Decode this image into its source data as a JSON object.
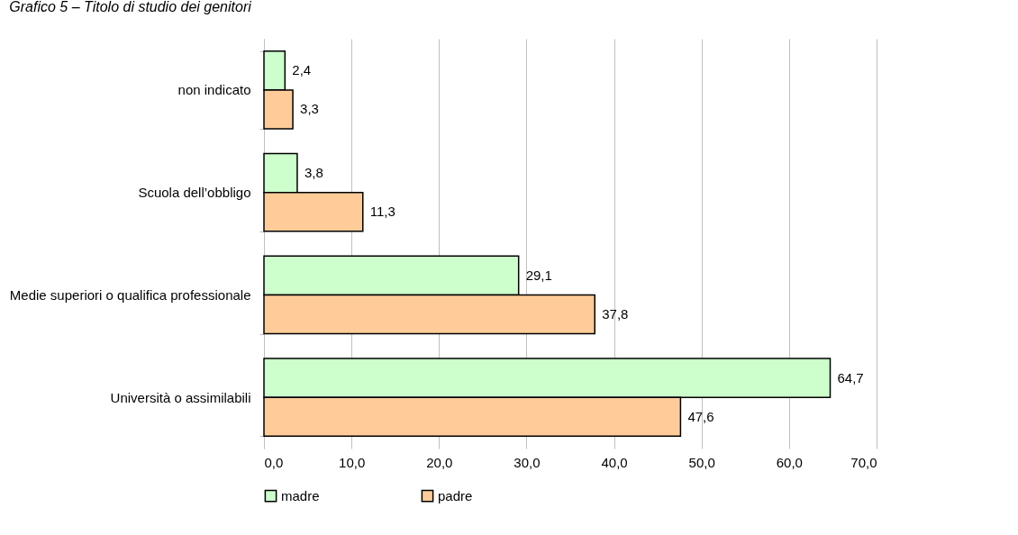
{
  "chart_data": {
    "type": "bar",
    "orientation": "horizontal",
    "title": "Grafico 5 – Titolo di studio dei genitori",
    "categories": [
      "non indicato",
      "Scuola dell’obbligo",
      "Medie superiori o qualifica professionale",
      "Università o assimilabili"
    ],
    "series": [
      {
        "name": "madre",
        "color": "#ccffcc",
        "values": [
          2.4,
          3.8,
          29.1,
          64.7
        ],
        "value_labels": [
          "2,4",
          "3,8",
          "29,1",
          "64,7"
        ]
      },
      {
        "name": "padre",
        "color": "#ffcc99",
        "values": [
          3.3,
          11.3,
          37.8,
          47.6
        ],
        "value_labels": [
          "3,3",
          "11,3",
          "37,8",
          "47,6"
        ]
      }
    ],
    "xlim": [
      0,
      70
    ],
    "xticks": [
      {
        "value": 0,
        "label": "0,0"
      },
      {
        "value": 10,
        "label": "10,0"
      },
      {
        "value": 20,
        "label": "20,0"
      },
      {
        "value": 30,
        "label": "30,0"
      },
      {
        "value": 40,
        "label": "40,0"
      },
      {
        "value": 50,
        "label": "50,0"
      },
      {
        "value": 60,
        "label": "60,0"
      },
      {
        "value": 70,
        "label": "70,0"
      }
    ],
    "grid": "x",
    "legend": "bottom"
  }
}
